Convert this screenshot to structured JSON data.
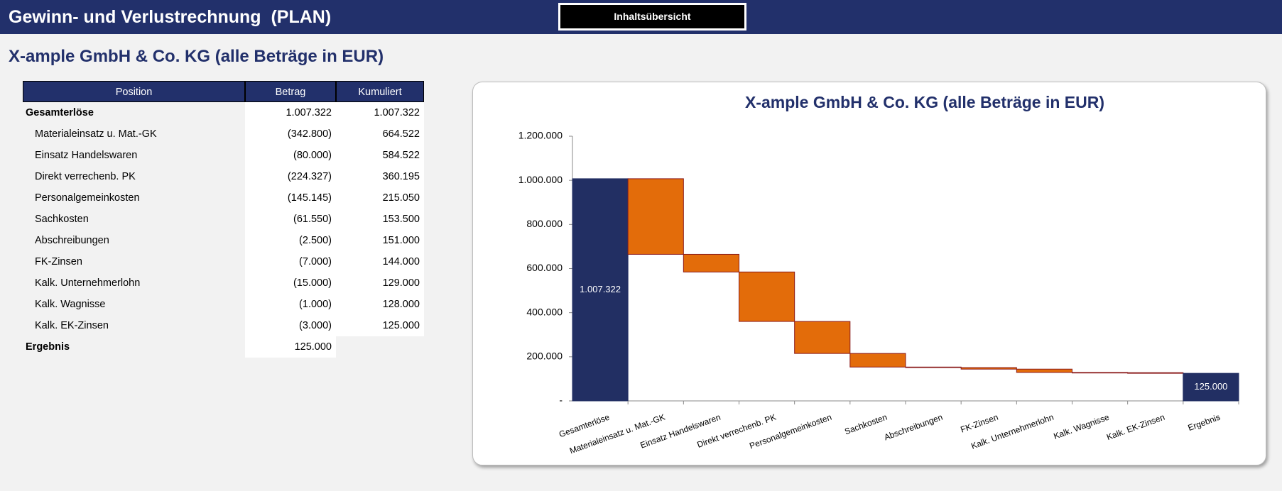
{
  "header": {
    "title": "Gewinn- und Verlustrechnung  (PLAN)",
    "button": "Inhaltsübersicht"
  },
  "subtitle": "X-ample GmbH & Co. KG (alle Beträge in EUR)",
  "table": {
    "header": [
      "Position",
      "Betrag",
      "Kumuliert"
    ],
    "rows": [
      [
        "Gesamterlöse",
        "1.007.322",
        "1.007.322"
      ],
      [
        "Materialeinsatz u. Mat.-GK",
        "(342.800)",
        "664.522"
      ],
      [
        "Einsatz Handelswaren",
        "(80.000)",
        "584.522"
      ],
      [
        "Direkt verrechenb. PK",
        "(224.327)",
        "360.195"
      ],
      [
        "Personalgemeinkosten",
        "(145.145)",
        "215.050"
      ],
      [
        "Sachkosten",
        "(61.550)",
        "153.500"
      ],
      [
        "Abschreibungen",
        "(2.500)",
        "151.000"
      ],
      [
        "FK-Zinsen",
        "(7.000)",
        "144.000"
      ],
      [
        "Kalk. Unternehmerlohn",
        "(15.000)",
        "129.000"
      ],
      [
        "Kalk. Wagnisse",
        "(1.000)",
        "128.000"
      ],
      [
        "Kalk. EK-Zinsen",
        "(3.000)",
        "125.000"
      ],
      [
        "Ergebnis",
        "125.000"
      ]
    ]
  },
  "chart_data": {
    "type": "waterfall",
    "title": "X-ample GmbH & Co. KG (alle Beträge in EUR)",
    "categories": [
      "Gesamterlöse",
      "Materialeinsatz u. Mat.-GK",
      "Einsatz Handelswaren",
      "Direkt verrechenb. PK",
      "Personalgemeinkosten",
      "Sachkosten",
      "Abschreibungen",
      "FK-Zinsen",
      "Kalk. Unternehmerlohn",
      "Kalk. Wagnisse",
      "Kalk. EK-Zinsen",
      "Ergebnis"
    ],
    "values": [
      1007322,
      -342800,
      -80000,
      -224327,
      -145145,
      -61550,
      -2500,
      -7000,
      -15000,
      -1000,
      -3000,
      125000
    ],
    "value_labels": [
      "1.007.322",
      null,
      null,
      null,
      null,
      null,
      null,
      null,
      null,
      null,
      null,
      "125.000"
    ],
    "measure": [
      "total",
      "relative",
      "relative",
      "relative",
      "relative",
      "relative",
      "relative",
      "relative",
      "relative",
      "relative",
      "relative",
      "total"
    ],
    "total_color": "#222f63",
    "decrease_color": "#e36c0a",
    "edge_color": "#8b1c1c",
    "ylim": [
      0,
      1200000
    ],
    "yticks": [
      {
        "value": 0,
        "label": "-"
      },
      {
        "value": 200000,
        "label": "200.000"
      },
      {
        "value": 400000,
        "label": "400.000"
      },
      {
        "value": 600000,
        "label": "600.000"
      },
      {
        "value": 800000,
        "label": "800.000"
      },
      {
        "value": 1000000,
        "label": "1.000.000"
      },
      {
        "value": 1200000,
        "label": "1.200.000"
      }
    ]
  }
}
